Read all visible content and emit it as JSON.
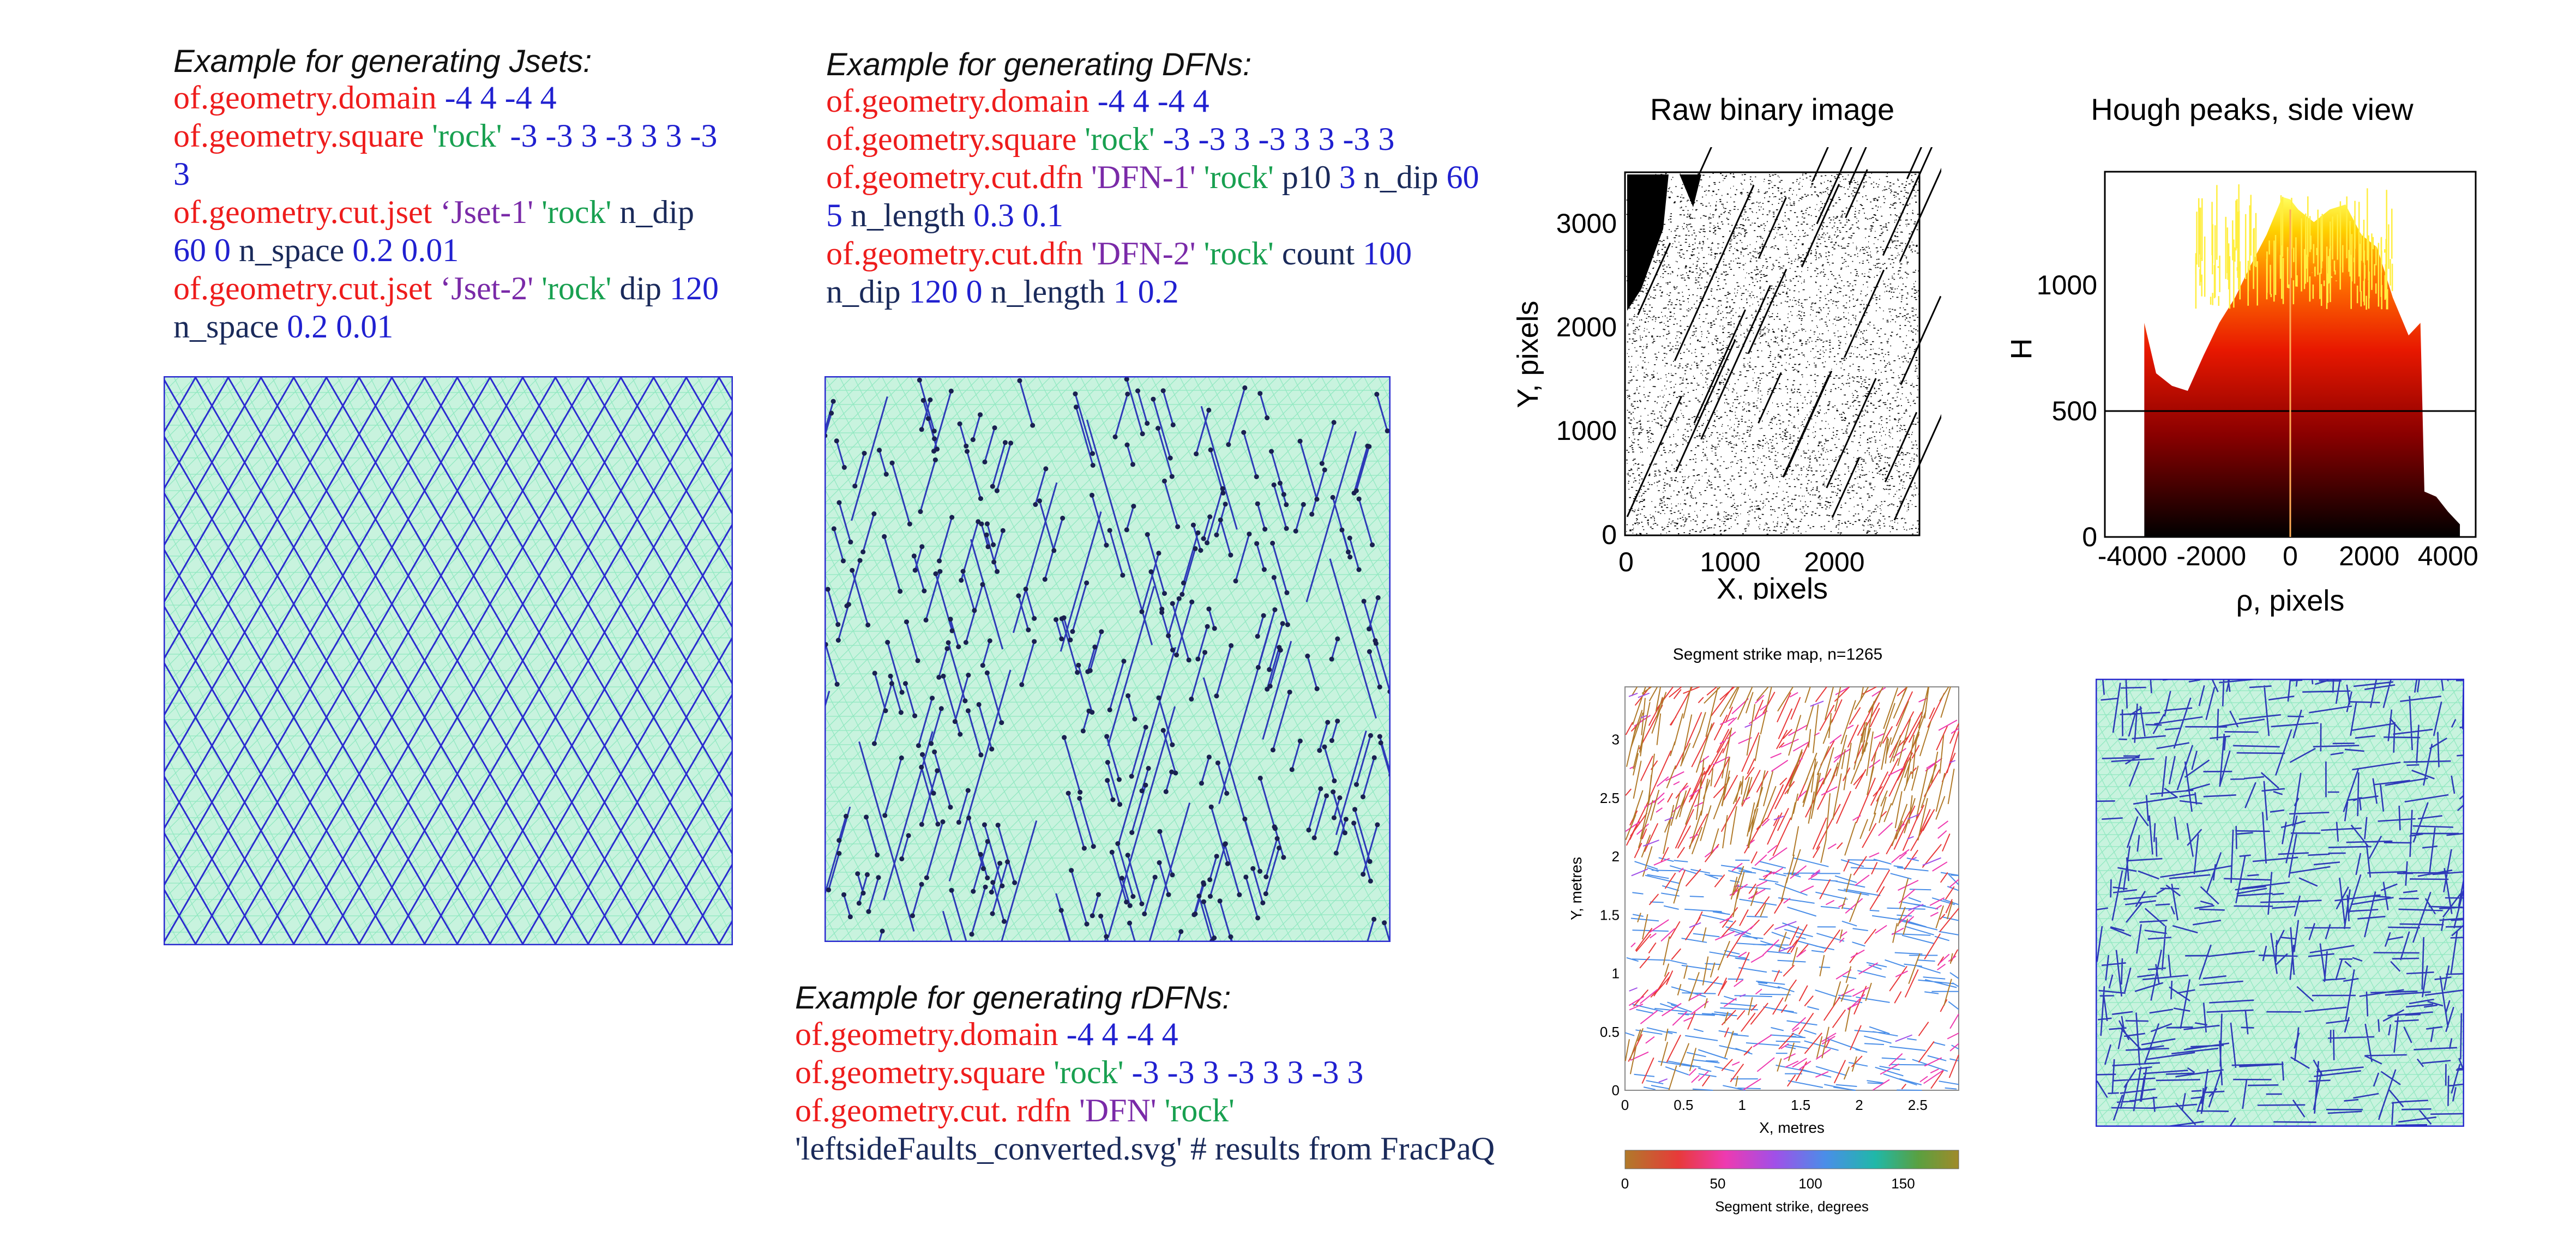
{
  "jsets": {
    "caption": "Example for generating Jsets:",
    "line1": {
      "cmd": "of.geometry.domain",
      "args": " -4 4 -4 4"
    },
    "line2": {
      "cmd": "of.geometry.square",
      "name": " 'rock'",
      "args": " -3 -3 3 -3 3 3 -3",
      "wrap": "3"
    },
    "line3": {
      "cmd": "of.geometry.cut.jset",
      "set": " ‘Jset-1'",
      "name": " 'rock'",
      "kw": " n_dip",
      "wrap_args": "60 0",
      "wrap_kw": " n_space",
      "wrap_args2": " 0.2 0.01"
    },
    "line4": {
      "cmd": "of.geometry.cut.jset",
      "set": " ‘Jset-2'",
      "name": " 'rock'",
      "kw": " dip",
      "args": " 120",
      "wrap_kw": "n_space",
      "wrap_args": " 0.2 0.01"
    }
  },
  "dfns": {
    "caption": "Example for generating DFNs:",
    "line1": {
      "cmd": "of.geometry.domain",
      "args": " -4 4 -4 4"
    },
    "line2": {
      "cmd": "of.geometry.square",
      "name": " 'rock'",
      "args": " -3 -3 3 -3 3 3 -3 3"
    },
    "line3": {
      "cmd": "of.geometry.cut.dfn",
      "set": " 'DFN-1'",
      "name": " 'rock'",
      "kw": " p10",
      "args": " 3",
      "kw2": " n_dip",
      "args2": " 60",
      "wrap_args": "5",
      "wrap_kw": " n_length",
      "wrap_args2": " 0.3 0.1"
    },
    "line4": {
      "cmd": "of.geometry.cut.dfn",
      "set": " 'DFN-2'",
      "name": " 'rock'",
      "kw": " count",
      "args": " 100",
      "wrap_kw": "n_dip",
      "wrap_args": " 120 0",
      "wrap_kw2": " n_length",
      "wrap_args2": " 1 0.2"
    }
  },
  "rdfns": {
    "caption": "Example for generating rDFNs:",
    "line1": {
      "cmd": "of.geometry.domain",
      "args": " -4 4 -4 4"
    },
    "line2": {
      "cmd": "of.geometry.square",
      "name": " 'rock'",
      "args": " -3 -3 3 -3 3 3 -3 3"
    },
    "line3": {
      "cmd": "of.geometry.cut. rdfn",
      "set": " 'DFN'",
      "name": " 'rock'"
    },
    "line4": {
      "file": "'leftsideFaults_converted.svg'",
      "comment": "  # results from FracPaQ"
    }
  },
  "raw_image": {
    "title": "Raw binary image",
    "xlabel": "X, pixels",
    "ylabel": "Y, pixels",
    "xticks": [
      "0",
      "1000",
      "2000"
    ],
    "yticks": [
      "0",
      "1000",
      "2000",
      "3000"
    ]
  },
  "hough": {
    "title": "Hough peaks, side view",
    "xlabel": "ρ, pixels",
    "ylabel": "H",
    "xticks": [
      "-4000",
      "-2000",
      "0",
      "2000",
      "4000"
    ],
    "yticks": [
      "0",
      "500",
      "1000"
    ]
  },
  "strike_map": {
    "title": "Segment strike map, n=1265",
    "xlabel": "X, metres",
    "ylabel": "Y, metres",
    "xticks": [
      "0",
      "0.5",
      "1",
      "1.5",
      "2",
      "2.5"
    ],
    "yticks": [
      "0",
      "0.5",
      "1",
      "1.5",
      "2",
      "2.5",
      "3"
    ],
    "colorbar_label": "Segment strike, degrees",
    "colorbar_ticks": [
      "0",
      "50",
      "100",
      "150"
    ]
  },
  "colors": {
    "code_red": "#ee1c1c",
    "code_blue": "#2020d0",
    "code_green": "#18a050",
    "code_purple": "#7a2aa8",
    "code_navy": "#1a2a5a",
    "mesh_fill": "#c8f3de",
    "mesh_line": "#8fe8c0",
    "joint_line": "#2b2bd0"
  },
  "chart_data": [
    {
      "type": "other",
      "title": "Raw binary image",
      "xlabel": "X, pixels",
      "ylabel": "Y, pixels",
      "xlim": [
        0,
        2800
      ],
      "ylim": [
        0,
        3500
      ],
      "x_ticks": [
        0,
        1000,
        2000
      ],
      "y_ticks": [
        0,
        1000,
        2000,
        3000
      ]
    },
    {
      "type": "area",
      "title": "Hough peaks, side view",
      "xlabel": "ρ, pixels",
      "ylabel": "H",
      "xlim": [
        -4700,
        4700
      ],
      "ylim": [
        0,
        1450
      ],
      "x_ticks": [
        -4000,
        -2000,
        0,
        2000,
        4000
      ],
      "y_ticks": [
        0,
        500,
        1000
      ],
      "reference_line_y": 500,
      "x": [
        -3700,
        -3400,
        -3000,
        -2600,
        -2200,
        -1800,
        -1400,
        -1000,
        -600,
        -200,
        0,
        200,
        600,
        1000,
        1400,
        1800,
        2200,
        2600,
        3000,
        3300,
        3400,
        3700,
        4000,
        4300
      ],
      "y": [
        850,
        650,
        600,
        580,
        720,
        850,
        950,
        1080,
        1200,
        1350,
        1340,
        1300,
        1250,
        1300,
        1320,
        1200,
        1150,
        950,
        800,
        850,
        180,
        160,
        100,
        50
      ]
    },
    {
      "type": "other",
      "title": "Segment strike map, n=1265",
      "xlabel": "X, metres",
      "ylabel": "Y, metres",
      "xlim": [
        0,
        2.85
      ],
      "ylim": [
        0,
        3.45
      ],
      "x_ticks": [
        0,
        0.5,
        1,
        1.5,
        2,
        2.5
      ],
      "y_ticks": [
        0,
        0.5,
        1,
        1.5,
        2,
        2.5,
        3
      ],
      "n": 1265,
      "colorbar": {
        "label": "Segment strike, degrees",
        "range": [
          0,
          180
        ],
        "ticks": [
          0,
          50,
          100,
          150
        ]
      }
    }
  ]
}
